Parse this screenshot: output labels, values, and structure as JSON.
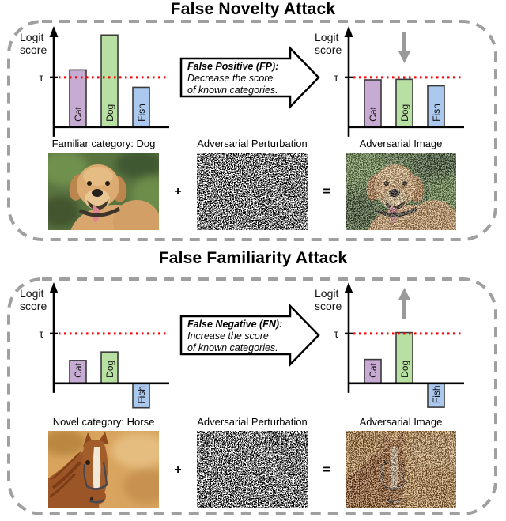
{
  "colors": {
    "dashed_border": "#a0a0a0",
    "threshold_red": "#ff0000",
    "attack_arrow_gray": "#9a9a9a",
    "bar_cat": "#c7abd3",
    "bar_dog": "#b8e0a2",
    "bar_fish": "#abc9ee"
  },
  "panels": [
    {
      "title": "False Novelty Attack",
      "arrow_box": {
        "heading": "False Positive (FP):",
        "line1": "Decrease the score",
        "line2": "of known categories."
      },
      "images": {
        "source_label": "Familiar category: Dog",
        "plus_sign": "+",
        "perturbation_label": "Adversarial Perturbation",
        "equals_sign": "=",
        "result_label": "Adversarial Image"
      }
    },
    {
      "title": "False Familiarity Attack",
      "arrow_box": {
        "heading": "False Negative (FN):",
        "line1": "Increase the score",
        "line2": "of known categories."
      },
      "images": {
        "source_label": "Novel category: Horse",
        "plus_sign": "+",
        "perturbation_label": "Adversarial Perturbation",
        "equals_sign": "=",
        "result_label": "Adversarial Image"
      }
    }
  ],
  "chart_data": [
    {
      "type": "bar",
      "name": "top-left-logits-before-false-novelty-attack",
      "ylabel": "Logit score",
      "threshold_label": "τ",
      "threshold": 1.0,
      "threshold_color": "#ff0000",
      "categories": [
        "Cat",
        "Dog",
        "Fish"
      ],
      "values": [
        1.15,
        1.85,
        0.8
      ],
      "bar_colors": [
        "#c7abd3",
        "#b8e0a2",
        "#abc9ee"
      ],
      "ylim": [
        0,
        1.95
      ],
      "attack_arrow": null
    },
    {
      "type": "bar",
      "name": "top-right-logits-after-false-novelty-attack",
      "ylabel": "Logit score",
      "threshold_label": "τ",
      "threshold": 1.0,
      "threshold_color": "#ff0000",
      "categories": [
        "Cat",
        "Dog",
        "Fish"
      ],
      "values": [
        0.95,
        0.96,
        0.83
      ],
      "bar_colors": [
        "#c7abd3",
        "#b8e0a2",
        "#abc9ee"
      ],
      "ylim": [
        0,
        1.95
      ],
      "attack_arrow": {
        "direction": "down",
        "category": "Dog",
        "color": "#9a9a9a"
      }
    },
    {
      "type": "bar",
      "name": "bottom-left-logits-before-false-familiarity-attack",
      "ylabel": "Logit score",
      "threshold_label": "τ",
      "threshold": 1.0,
      "threshold_color": "#ff0000",
      "categories": [
        "Cat",
        "Dog",
        "Fish"
      ],
      "values": [
        0.46,
        0.63,
        -0.49
      ],
      "bar_colors": [
        "#c7abd3",
        "#b8e0a2",
        "#abc9ee"
      ],
      "ylim": [
        -0.55,
        1.95
      ],
      "attack_arrow": null
    },
    {
      "type": "bar",
      "name": "bottom-right-logits-after-false-familiarity-attack",
      "ylabel": "Logit score",
      "threshold_label": "τ",
      "threshold": 1.0,
      "threshold_color": "#ff0000",
      "categories": [
        "Cat",
        "Dog",
        "Fish"
      ],
      "values": [
        0.48,
        1.02,
        -0.48
      ],
      "bar_colors": [
        "#c7abd3",
        "#b8e0a2",
        "#abc9ee"
      ],
      "ylim": [
        -0.55,
        1.95
      ],
      "attack_arrow": {
        "direction": "up",
        "category": "Dog",
        "color": "#9a9a9a"
      }
    }
  ]
}
